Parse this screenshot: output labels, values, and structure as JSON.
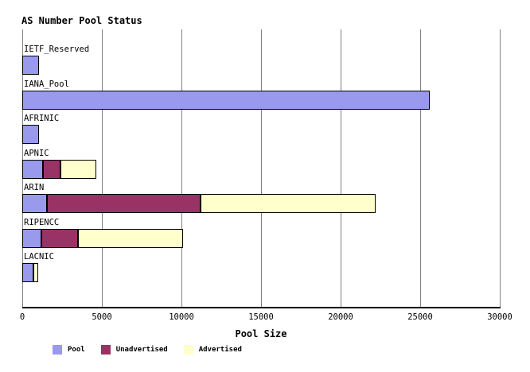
{
  "chart_data": {
    "type": "bar",
    "orientation": "horizontal",
    "stacked": true,
    "title": "AS Number Pool Status",
    "xlabel": "Pool Size",
    "xlim": [
      0,
      30000
    ],
    "xticks": [
      0,
      5000,
      10000,
      15000,
      20000,
      25000,
      30000
    ],
    "grid": true,
    "legend_position": "bottom",
    "categories": [
      "IETF_Reserved",
      "IANA_Pool",
      "AFRINIC",
      "APNIC",
      "ARIN",
      "RIPENCC",
      "LACNIC"
    ],
    "series": [
      {
        "name": "Pool",
        "color": "#9999ee",
        "values": [
          1050,
          25600,
          1050,
          1300,
          1550,
          1200,
          700
        ]
      },
      {
        "name": "Unadvertised",
        "color": "#993366",
        "values": [
          0,
          0,
          0,
          1100,
          9650,
          2300,
          0
        ]
      },
      {
        "name": "Advertised",
        "color": "#ffffcc",
        "values": [
          0,
          0,
          0,
          2250,
          11000,
          6600,
          300
        ]
      }
    ],
    "totals": [
      1050,
      25600,
      1050,
      4650,
      22200,
      10100,
      1000
    ]
  },
  "colors": {
    "pool": "#9999ee",
    "unadvertised": "#993366",
    "advertised": "#ffffcc",
    "gridline": "#808080",
    "axis": "#000000",
    "background": "#ffffff"
  }
}
